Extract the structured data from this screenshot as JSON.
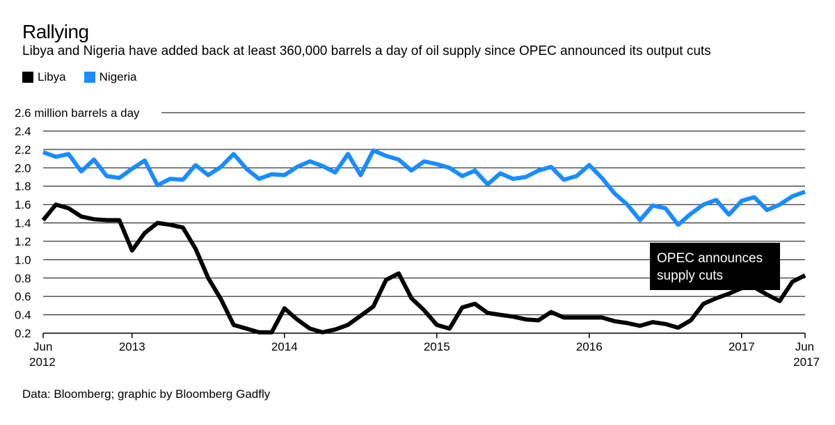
{
  "chart_data": {
    "type": "line",
    "title": "Rallying",
    "subtitle": "Libya and Nigeria have added back at least 360,000 barrels a day of oil supply since OPEC announced its output cuts",
    "ylabel": "million barrels a day",
    "ylim": [
      0.2,
      2.6
    ],
    "yticks": [
      0.2,
      0.4,
      0.6,
      0.8,
      1.0,
      1.2,
      1.4,
      1.6,
      1.8,
      2.0,
      2.2,
      2.4,
      2.6
    ],
    "ytick_labels": [
      "0.2",
      "0.4",
      "0.6",
      "0.8",
      "1.0",
      "1.2",
      "1.4",
      "1.6",
      "1.8",
      "2.0",
      "2.2",
      "2.4",
      "2.6 million barrels a day"
    ],
    "xlim": [
      0,
      60
    ],
    "xticks": [
      {
        "x": 0,
        "line1": "Jun",
        "line2": "2012"
      },
      {
        "x": 7,
        "line1": "2013",
        "line2": ""
      },
      {
        "x": 19,
        "line1": "2014",
        "line2": ""
      },
      {
        "x": 31,
        "line1": "2015",
        "line2": ""
      },
      {
        "x": 43,
        "line1": "2016",
        "line2": ""
      },
      {
        "x": 55,
        "line1": "2017",
        "line2": ""
      },
      {
        "x": 60,
        "line1": "Jun",
        "line2": "2017"
      }
    ],
    "series": [
      {
        "name": "Libya",
        "color": "#000000",
        "values": [
          1.43,
          1.6,
          1.56,
          1.47,
          1.44,
          1.43,
          1.43,
          1.1,
          1.29,
          1.4,
          1.38,
          1.35,
          1.12,
          0.8,
          0.57,
          0.29,
          0.25,
          0.21,
          0.21,
          0.47,
          0.35,
          0.25,
          0.21,
          0.24,
          0.29,
          0.39,
          0.49,
          0.78,
          0.85,
          0.58,
          0.45,
          0.29,
          0.25,
          0.48,
          0.52,
          0.42,
          0.4,
          0.38,
          0.35,
          0.34,
          0.43,
          0.37,
          0.37,
          0.37,
          0.37,
          0.33,
          0.31,
          0.28,
          0.32,
          0.3,
          0.26,
          0.34,
          0.52,
          0.58,
          0.63,
          0.69,
          0.7,
          0.62,
          0.55,
          0.76,
          0.83
        ]
      },
      {
        "name": "Nigeria",
        "color": "#1a8cff",
        "values": [
          2.17,
          2.12,
          2.15,
          1.96,
          2.09,
          1.91,
          1.89,
          1.99,
          2.08,
          1.81,
          1.88,
          1.87,
          2.03,
          1.92,
          2.01,
          2.15,
          1.99,
          1.88,
          1.93,
          1.92,
          2.01,
          2.07,
          2.02,
          1.95,
          2.15,
          1.92,
          2.19,
          2.13,
          2.09,
          1.97,
          2.07,
          2.04,
          2.0,
          1.91,
          1.97,
          1.82,
          1.94,
          1.88,
          1.9,
          1.97,
          2.01,
          1.87,
          1.91,
          2.03,
          1.89,
          1.72,
          1.6,
          1.43,
          1.59,
          1.56,
          1.38,
          1.5,
          1.6,
          1.65,
          1.49,
          1.64,
          1.68,
          1.54,
          1.6,
          1.69,
          1.74
        ]
      }
    ],
    "annotation": {
      "x": 53.5,
      "y": 0.67,
      "line1": "OPEC announces",
      "line2": "supply cuts"
    },
    "source": "Data: Bloomberg; graphic by Bloomberg Gadfly"
  }
}
